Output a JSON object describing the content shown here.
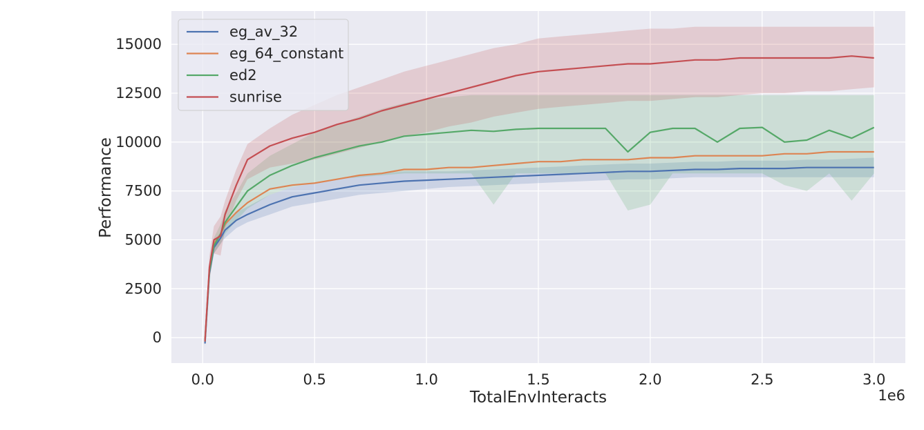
{
  "chart_data": {
    "type": "line",
    "title": "",
    "xlabel": "TotalEnvInteracts",
    "ylabel": "Performance",
    "x_offset_label": "1e6",
    "xlim": [
      -0.14,
      3.14
    ],
    "ylim": [
      -1300,
      16700
    ],
    "x_ticks": [
      0.0,
      0.5,
      1.0,
      1.5,
      2.0,
      2.5,
      3.0
    ],
    "x_tick_labels": [
      "0.0",
      "0.5",
      "1.0",
      "1.5",
      "2.0",
      "2.5",
      "3.0"
    ],
    "y_ticks": [
      0,
      2500,
      5000,
      7500,
      10000,
      12500,
      15000
    ],
    "y_tick_labels": [
      "0",
      "2500",
      "5000",
      "7500",
      "10000",
      "12500",
      "15000"
    ],
    "grid": true,
    "legend_position": "top-left",
    "x": [
      0.01,
      0.03,
      0.05,
      0.08,
      0.1,
      0.15,
      0.2,
      0.3,
      0.4,
      0.5,
      0.6,
      0.7,
      0.8,
      0.9,
      1.0,
      1.1,
      1.2,
      1.3,
      1.4,
      1.5,
      1.6,
      1.7,
      1.8,
      1.9,
      2.0,
      2.1,
      2.2,
      2.3,
      2.4,
      2.5,
      2.6,
      2.7,
      2.8,
      2.9,
      3.0
    ],
    "series": [
      {
        "name": "eg_av_32",
        "color": "#4c72b0",
        "values": [
          -300,
          3300,
          4600,
          5100,
          5500,
          6000,
          6300,
          6800,
          7200,
          7400,
          7600,
          7800,
          7900,
          8000,
          8050,
          8100,
          8150,
          8200,
          8250,
          8300,
          8350,
          8400,
          8450,
          8500,
          8500,
          8550,
          8600,
          8600,
          8650,
          8650,
          8650,
          8700,
          8700,
          8700,
          8700
        ],
        "lower": [
          -500,
          3000,
          4300,
          4800,
          5100,
          5600,
          5900,
          6300,
          6700,
          6900,
          7100,
          7300,
          7400,
          7500,
          7600,
          7700,
          7750,
          7800,
          7850,
          7900,
          7950,
          8000,
          8050,
          8100,
          8100,
          8150,
          8200,
          8200,
          8200,
          8200,
          8200,
          8200,
          8200,
          8200,
          8200
        ],
        "upper": [
          -100,
          3600,
          4900,
          5400,
          5900,
          6400,
          6700,
          7300,
          7700,
          7900,
          8100,
          8300,
          8400,
          8500,
          8500,
          8500,
          8550,
          8600,
          8650,
          8700,
          8750,
          8800,
          8850,
          8900,
          8900,
          8950,
          9000,
          9000,
          9050,
          9050,
          9050,
          9100,
          9100,
          9150,
          9200
        ]
      },
      {
        "name": "eg_64_constant",
        "color": "#dd8452",
        "values": [
          -100,
          3500,
          4800,
          5300,
          5800,
          6400,
          6900,
          7600,
          7800,
          7900,
          8100,
          8300,
          8400,
          8600,
          8600,
          8700,
          8700,
          8800,
          8900,
          9000,
          9000,
          9100,
          9100,
          9100,
          9200,
          9200,
          9300,
          9300,
          9300,
          9300,
          9400,
          9400,
          9500,
          9500,
          9500
        ],
        "lower": [
          -100,
          3500,
          4800,
          5300,
          5800,
          6400,
          6900,
          7600,
          7800,
          7900,
          8100,
          8300,
          8400,
          8600,
          8600,
          8700,
          8700,
          8800,
          8900,
          9000,
          9000,
          9100,
          9100,
          9100,
          9200,
          9200,
          9300,
          9300,
          9300,
          9300,
          9400,
          9400,
          9500,
          9500,
          9500
        ],
        "upper": [
          -100,
          3500,
          4800,
          5300,
          5800,
          6400,
          6900,
          7600,
          7800,
          7900,
          8100,
          8300,
          8400,
          8600,
          8600,
          8700,
          8700,
          8800,
          8900,
          9000,
          9000,
          9100,
          9100,
          9100,
          9200,
          9200,
          9300,
          9300,
          9300,
          9300,
          9400,
          9400,
          9500,
          9500,
          9500
        ]
      },
      {
        "name": "ed2",
        "color": "#55a868",
        "values": [
          -200,
          3400,
          4700,
          5300,
          5900,
          6700,
          7500,
          8300,
          8800,
          9200,
          9500,
          9800,
          10000,
          10300,
          10400,
          10500,
          10600,
          10550,
          10650,
          10700,
          10700,
          10700,
          10700,
          9500,
          10500,
          10700,
          10700,
          10000,
          10700,
          10750,
          10000,
          10100,
          10600,
          10200,
          10750
        ],
        "lower": [
          -400,
          3000,
          4300,
          4800,
          5300,
          6000,
          6600,
          7300,
          7700,
          7900,
          8100,
          8200,
          8300,
          8400,
          8400,
          8400,
          8400,
          6800,
          8400,
          8400,
          8400,
          8400,
          8400,
          6500,
          6800,
          8400,
          8400,
          8400,
          8400,
          8400,
          7800,
          7500,
          8400,
          7000,
          8400
        ],
        "upper": [
          0,
          3800,
          5100,
          5800,
          6500,
          7400,
          8400,
          9300,
          9900,
          10500,
          10900,
          11300,
          11700,
          12000,
          12200,
          12300,
          12400,
          12400,
          12400,
          12400,
          12400,
          12400,
          12400,
          12400,
          12400,
          12400,
          12400,
          12400,
          12400,
          12400,
          12400,
          12400,
          12400,
          12400,
          12400
        ]
      },
      {
        "name": "sunrise",
        "color": "#c44e52",
        "values": [
          -200,
          3600,
          5000,
          5200,
          6300,
          7800,
          9100,
          9800,
          10200,
          10500,
          10900,
          11200,
          11600,
          11900,
          12200,
          12500,
          12800,
          13100,
          13400,
          13600,
          13700,
          13800,
          13900,
          14000,
          14000,
          14100,
          14200,
          14200,
          14300,
          14300,
          14300,
          14300,
          14300,
          14400,
          14300
        ],
        "lower": [
          -400,
          3000,
          4300,
          4200,
          5600,
          7000,
          8100,
          8700,
          8900,
          9100,
          9400,
          9700,
          10000,
          10300,
          10500,
          10800,
          11000,
          11300,
          11500,
          11700,
          11800,
          11900,
          12000,
          12100,
          12100,
          12200,
          12300,
          12300,
          12400,
          12500,
          12500,
          12600,
          12600,
          12700,
          12800
        ],
        "upper": [
          0,
          4200,
          5700,
          6200,
          7000,
          8600,
          9900,
          10700,
          11400,
          11900,
          12400,
          12800,
          13200,
          13600,
          13900,
          14200,
          14500,
          14800,
          15000,
          15300,
          15400,
          15500,
          15600,
          15700,
          15800,
          15800,
          15900,
          15900,
          15900,
          15900,
          15900,
          15900,
          15900,
          15900,
          15900
        ]
      }
    ]
  }
}
